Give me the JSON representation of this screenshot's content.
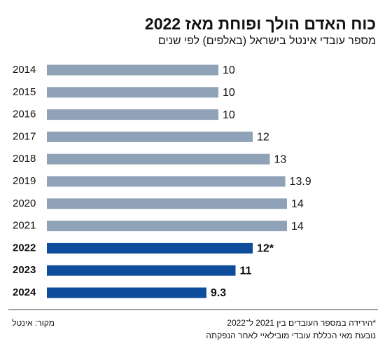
{
  "chart_data": {
    "type": "hbar",
    "title": "כוח האדם הולך ופוחת מאז 2022",
    "subtitle": "מספר עובדי אינטל בישראל (באלפים) לפי שנים",
    "categories": [
      "2014",
      "2015",
      "2016",
      "2017",
      "2018",
      "2019",
      "2020",
      "2021",
      "2022",
      "2023",
      "2024"
    ],
    "values": [
      10,
      10,
      10,
      12,
      13,
      13.9,
      14,
      14,
      12,
      11,
      9.3
    ],
    "value_labels": [
      "10",
      "10",
      "10",
      "12",
      "13",
      "13.9",
      "14",
      "14",
      "12*",
      "11",
      "9.3"
    ],
    "colors": [
      "#8fa2b7",
      "#8fa2b7",
      "#8fa2b7",
      "#8fa2b7",
      "#8fa2b7",
      "#8fa2b7",
      "#8fa2b7",
      "#8fa2b7",
      "#0d4d9b",
      "#0d4d9b",
      "#0d4d9b"
    ],
    "footnote": [
      "*הירידה במספר העובדים בין 2021 ל־2022",
      "נובעת מאי הכללת עובדי מובילאיי לאחר הנפקתה"
    ],
    "source": "מקור: אינטל"
  }
}
